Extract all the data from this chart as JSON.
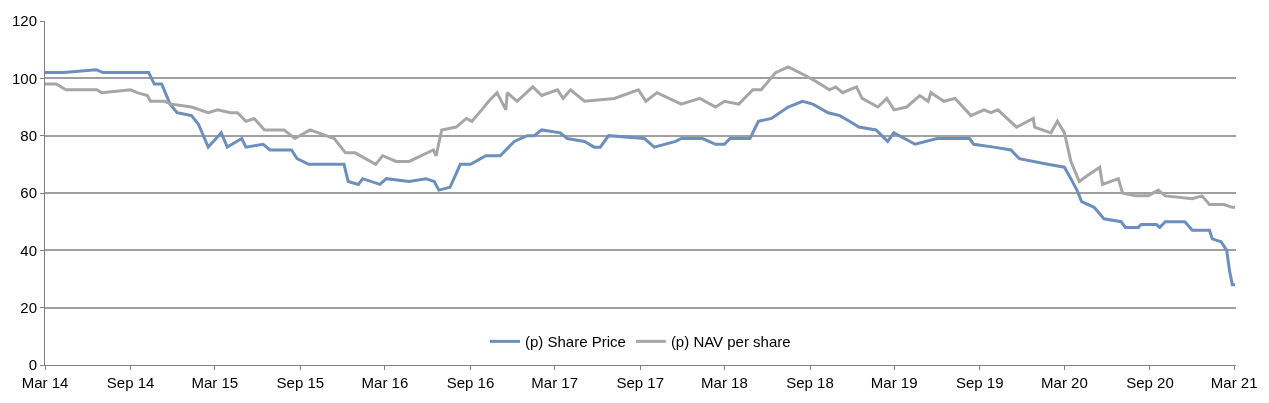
{
  "chart_data": {
    "type": "line",
    "xlim": [
      "2014-03-01",
      "2021-03-05"
    ],
    "xticks": [
      {
        "value": "2014-03-01",
        "label": "Mar 14"
      },
      {
        "value": "2014-09-01",
        "label": "Sep 14"
      },
      {
        "value": "2015-03-01",
        "label": "Mar 15"
      },
      {
        "value": "2015-09-01",
        "label": "Sep 15"
      },
      {
        "value": "2016-03-01",
        "label": "Mar 16"
      },
      {
        "value": "2016-09-01",
        "label": "Sep 16"
      },
      {
        "value": "2017-03-01",
        "label": "Mar 17"
      },
      {
        "value": "2017-09-01",
        "label": "Sep 17"
      },
      {
        "value": "2018-03-01",
        "label": "Mar 18"
      },
      {
        "value": "2018-09-01",
        "label": "Sep 18"
      },
      {
        "value": "2019-03-01",
        "label": "Mar 19"
      },
      {
        "value": "2019-09-01",
        "label": "Sep 19"
      },
      {
        "value": "2020-03-01",
        "label": "Mar 20"
      },
      {
        "value": "2020-09-01",
        "label": "Sep 20"
      },
      {
        "value": "2021-03-01",
        "label": "Mar 21"
      }
    ],
    "ylim": [
      0,
      120
    ],
    "yticks": [
      0,
      20,
      40,
      60,
      80,
      100,
      120
    ],
    "grid": "y",
    "legend": "bottom",
    "marker": "none",
    "line_style": "solid",
    "series": [
      {
        "name": "(p) Share Price",
        "color": "#6d8fbb",
        "x": [
          "2014-03-01",
          "2014-04-10",
          "2014-06-19",
          "2014-07-04",
          "2014-10-10",
          "2014-10-22",
          "2014-11-07",
          "2014-11-25",
          "2014-12-10",
          "2015-01-10",
          "2015-01-25",
          "2015-02-15",
          "2015-03-04",
          "2015-03-15",
          "2015-03-28",
          "2015-04-28",
          "2015-05-07",
          "2015-06-13",
          "2015-06-28",
          "2015-08-13",
          "2015-08-25",
          "2015-09-19",
          "2015-10-25",
          "2015-11-04",
          "2015-12-04",
          "2015-12-13",
          "2016-01-04",
          "2016-01-13",
          "2016-02-19",
          "2016-03-04",
          "2016-04-22",
          "2016-05-28",
          "2016-06-15",
          "2016-06-25",
          "2016-07-19",
          "2016-08-10",
          "2016-08-28",
          "2016-09-01",
          "2016-10-04",
          "2016-11-04",
          "2016-12-04",
          "2017-01-01",
          "2017-01-16",
          "2017-02-01",
          "2017-03-13",
          "2017-03-28",
          "2017-05-04",
          "2017-05-25",
          "2017-06-07",
          "2017-06-25",
          "2017-09-10",
          "2017-10-01",
          "2017-11-16",
          "2017-11-28",
          "2018-01-13",
          "2018-02-10",
          "2018-03-01",
          "2018-03-13",
          "2018-04-25",
          "2018-05-13",
          "2018-06-10",
          "2018-07-16",
          "2018-08-16",
          "2018-09-07",
          "2018-10-10",
          "2018-11-04",
          "2018-11-25",
          "2018-12-15",
          "2019-01-21",
          "2019-02-15",
          "2019-02-28",
          "2019-04-15",
          "2019-06-01",
          "2019-08-10",
          "2019-08-19",
          "2019-10-01",
          "2019-11-07",
          "2019-11-25",
          "2020-01-25",
          "2020-03-01",
          "2020-03-15",
          "2020-03-28",
          "2020-04-07",
          "2020-05-04",
          "2020-05-25",
          "2020-07-01",
          "2020-07-10",
          "2020-08-07",
          "2020-08-13",
          "2020-09-15",
          "2020-09-22",
          "2020-10-04",
          "2020-11-15",
          "2020-12-01",
          "2021-01-07",
          "2021-01-13",
          "2021-02-01",
          "2021-02-13",
          "2021-02-19",
          "2021-02-25",
          "2021-03-03"
        ],
        "values": [
          102,
          102,
          103,
          102,
          102,
          98,
          98,
          91,
          88,
          87,
          84,
          76,
          79,
          81,
          76,
          79,
          76,
          77,
          75,
          75,
          72,
          70,
          70,
          70,
          70,
          64,
          63,
          65,
          63,
          65,
          64,
          65,
          64,
          61,
          62,
          70,
          70,
          70,
          73,
          73,
          78,
          80,
          80,
          82,
          81,
          79,
          78,
          76,
          76,
          80,
          79,
          76,
          78,
          79,
          79,
          77,
          77,
          79,
          79,
          85,
          86,
          90,
          92,
          91,
          88,
          87,
          85,
          83,
          82,
          78,
          81,
          77,
          79,
          79,
          77,
          76,
          75,
          72,
          70,
          69,
          65,
          61,
          57,
          55,
          51,
          50,
          48,
          48,
          49,
          49,
          48,
          50,
          50,
          47,
          47,
          44,
          43,
          40,
          33,
          28,
          28
        ]
      },
      {
        "name": "(p) NAV per share",
        "color": "#a6a6a6",
        "x": [
          "2014-03-01",
          "2014-03-25",
          "2014-04-15",
          "2014-06-20",
          "2014-07-01",
          "2014-09-01",
          "2014-09-15",
          "2014-10-07",
          "2014-10-14",
          "2014-11-13",
          "2014-11-28",
          "2015-01-10",
          "2015-02-15",
          "2015-03-07",
          "2015-04-04",
          "2015-04-19",
          "2015-05-07",
          "2015-05-25",
          "2015-06-16",
          "2015-07-28",
          "2015-08-20",
          "2015-09-22",
          "2015-10-10",
          "2015-11-13",
          "2015-12-07",
          "2015-12-28",
          "2016-02-10",
          "2016-02-25",
          "2016-03-25",
          "2016-04-22",
          "2016-06-13",
          "2016-06-19",
          "2016-07-01",
          "2016-08-01",
          "2016-08-23",
          "2016-09-04",
          "2016-09-25",
          "2016-10-10",
          "2016-10-28",
          "2016-11-16",
          "2016-11-19",
          "2016-12-10",
          "2017-01-13",
          "2017-02-01",
          "2017-03-07",
          "2017-03-19",
          "2017-04-04",
          "2017-05-04",
          "2017-07-07",
          "2017-08-28",
          "2017-09-13",
          "2017-10-07",
          "2017-11-28",
          "2018-01-07",
          "2018-02-10",
          "2018-03-01",
          "2018-04-01",
          "2018-05-01",
          "2018-05-19",
          "2018-06-19",
          "2018-07-16",
          "2018-08-22",
          "2018-09-13",
          "2018-10-13",
          "2018-10-26",
          "2018-11-10",
          "2018-12-10",
          "2018-12-22",
          "2019-01-25",
          "2019-02-13",
          "2019-03-01",
          "2019-03-28",
          "2019-04-25",
          "2019-05-13",
          "2019-05-19",
          "2019-06-16",
          "2019-07-10",
          "2019-08-13",
          "2019-09-10",
          "2019-09-25",
          "2019-10-10",
          "2019-11-19",
          "2019-12-25",
          "2019-12-28",
          "2020-02-01",
          "2020-02-15",
          "2020-03-01",
          "2020-03-15",
          "2020-04-02",
          "2020-04-19",
          "2020-05-16",
          "2020-05-22",
          "2020-06-25",
          "2020-07-04",
          "2020-08-01",
          "2020-08-28",
          "2020-09-19",
          "2020-10-04",
          "2020-12-01",
          "2020-12-22",
          "2021-01-07",
          "2021-02-07",
          "2021-02-25",
          "2021-03-03"
        ],
        "values": [
          98,
          98,
          96,
          96,
          95,
          96,
          95,
          94,
          92,
          92,
          91,
          90,
          88,
          89,
          88,
          88,
          85,
          86,
          82,
          82,
          79,
          82,
          81,
          79,
          74,
          74,
          70,
          73,
          71,
          71,
          75,
          73,
          82,
          83,
          86,
          85,
          89,
          92,
          95,
          89,
          95,
          92,
          97,
          94,
          96,
          93,
          96,
          92,
          93,
          96,
          92,
          95,
          91,
          93,
          90,
          92,
          91,
          96,
          96,
          102,
          104,
          101,
          99,
          96,
          97,
          95,
          97,
          93,
          90,
          93,
          89,
          90,
          94,
          92,
          95,
          92,
          93,
          87,
          89,
          88,
          89,
          83,
          86,
          83,
          81,
          85,
          81,
          71,
          64,
          66,
          69,
          63,
          65,
          60,
          59,
          59,
          61,
          59,
          58,
          59,
          56,
          56,
          55,
          55
        ]
      }
    ]
  }
}
